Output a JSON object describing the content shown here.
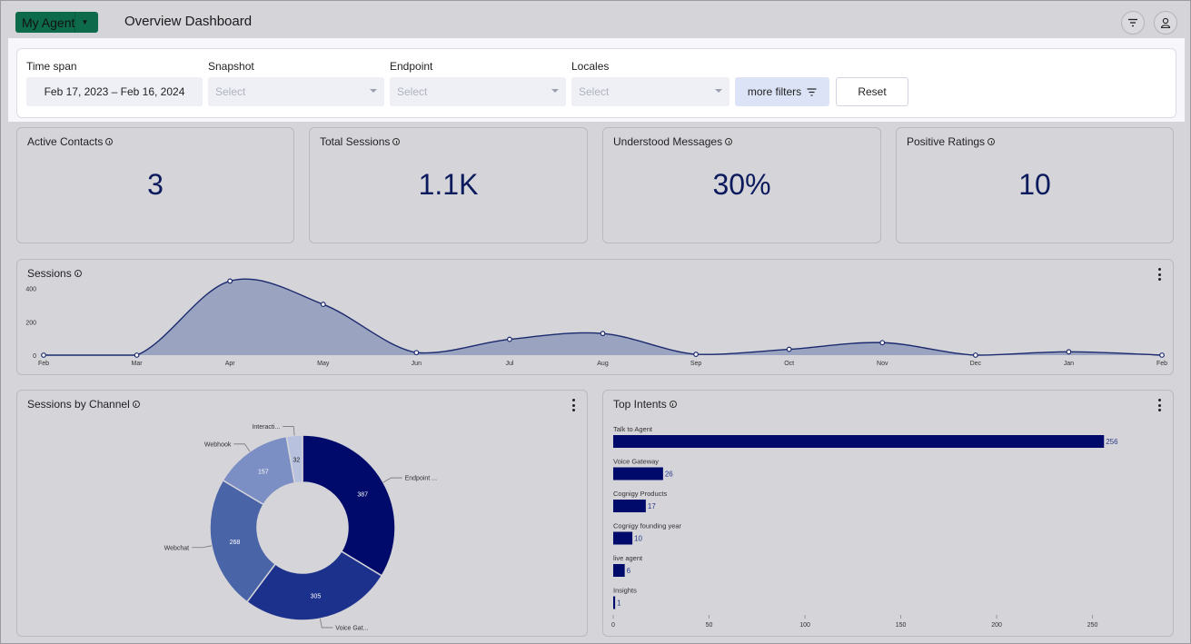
{
  "header": {
    "agent_label": "My Agent",
    "title": "Overview Dashboard"
  },
  "filters": {
    "timespan": {
      "label": "Time span",
      "value": "Feb 17, 2023 – Feb 16, 2024"
    },
    "snapshot": {
      "label": "Snapshot",
      "placeholder": "Select"
    },
    "endpoint": {
      "label": "Endpoint",
      "placeholder": "Select"
    },
    "locales": {
      "label": "Locales",
      "placeholder": "Select"
    },
    "more_filters_label": "more filters",
    "reset_label": "Reset"
  },
  "kpis": [
    {
      "title": "Active Contacts",
      "value": "3"
    },
    {
      "title": "Total Sessions",
      "value": "1.1K"
    },
    {
      "title": "Understood Messages",
      "value": "30%"
    },
    {
      "title": "Positive Ratings",
      "value": "10"
    }
  ],
  "colors": {
    "accent": "#0d6a4a",
    "navy": "#000a6b",
    "area_fill": "#9aa3bf",
    "line": "#1b2a6e"
  },
  "chart_data": [
    {
      "type": "area",
      "title": "Sessions",
      "categories": [
        "Feb",
        "Mar",
        "Apr",
        "May",
        "Jun",
        "Jul",
        "Aug",
        "Sep",
        "Oct",
        "Nov",
        "Dec",
        "Jan",
        "Feb"
      ],
      "values": [
        0,
        0,
        445,
        305,
        15,
        95,
        130,
        5,
        35,
        75,
        0,
        20,
        0
      ],
      "ylim": [
        0,
        480
      ],
      "yticks": [
        "0",
        "200",
        "400"
      ],
      "ytick_values": [
        0,
        200,
        400
      ]
    },
    {
      "type": "pie",
      "title": "Sessions by Channel",
      "donut": true,
      "slices": [
        {
          "label": "Endpoint ...",
          "value": 387,
          "color": "#000a6b"
        },
        {
          "label": "Voice Gat...",
          "value": 305,
          "color": "#1c318c"
        },
        {
          "label": "Webchat",
          "value": 268,
          "color": "#4a64a8"
        },
        {
          "label": "Webhook",
          "value": 157,
          "color": "#7c8fc4"
        },
        {
          "label": "Interacti...",
          "value": 32,
          "color": "#b8c2de"
        }
      ]
    },
    {
      "type": "bar",
      "orientation": "horizontal",
      "title": "Top Intents",
      "categories": [
        "Talk to Agent",
        "Voice Gateway",
        "Cognigy Products",
        "Cognigy founding year",
        "live agent",
        "Insights"
      ],
      "values": [
        256,
        26,
        17,
        10,
        6,
        1
      ],
      "xlim": [
        0,
        290
      ],
      "xticks": [
        "0",
        "50",
        "100",
        "150",
        "200",
        "250"
      ],
      "xtick_values": [
        0,
        50,
        100,
        150,
        200,
        250
      ]
    }
  ]
}
